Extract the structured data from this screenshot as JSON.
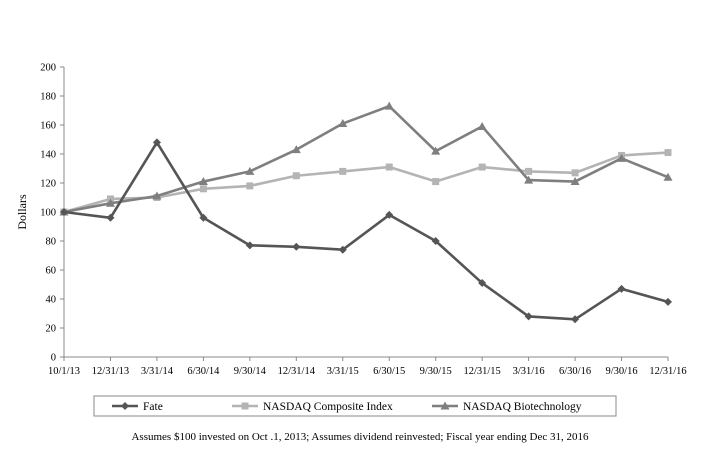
{
  "chart_data": {
    "type": "line",
    "title": "",
    "xlabel": "",
    "ylabel": "Dollars",
    "ylim": [
      0,
      200
    ],
    "yticks": [
      0,
      20,
      40,
      60,
      80,
      100,
      120,
      140,
      160,
      180,
      200
    ],
    "grid": false,
    "legend_position": "bottom",
    "categories": [
      "10/1/13",
      "12/31/13",
      "3/31/14",
      "6/30/14",
      "9/30/14",
      "12/31/14",
      "3/31/15",
      "6/30/15",
      "9/30/15",
      "12/31/15",
      "3/31/16",
      "6/30/16",
      "9/30/16",
      "12/31/16"
    ],
    "series": [
      {
        "name": "Fate",
        "marker": "diamond",
        "color": "#555555",
        "values": [
          100,
          96,
          148,
          96,
          77,
          76,
          74,
          98,
          80,
          51,
          28,
          26,
          47,
          38
        ]
      },
      {
        "name": "NASDAQ Composite Index",
        "marker": "square",
        "color": "#b4b4b4",
        "values": [
          100,
          109,
          110,
          116,
          118,
          125,
          128,
          131,
          121,
          131,
          128,
          127,
          139,
          141
        ]
      },
      {
        "name": "NASDAQ Biotechnology",
        "marker": "triangle",
        "color": "#7f7f7f",
        "values": [
          100,
          106,
          111,
          121,
          128,
          143,
          161,
          173,
          142,
          159,
          122,
          121,
          137,
          124
        ]
      }
    ]
  },
  "footnote": "Assumes $100 invested on Oct .1, 2013;  Assumes dividend reinvested; Fiscal year ending Dec 31, 2016"
}
